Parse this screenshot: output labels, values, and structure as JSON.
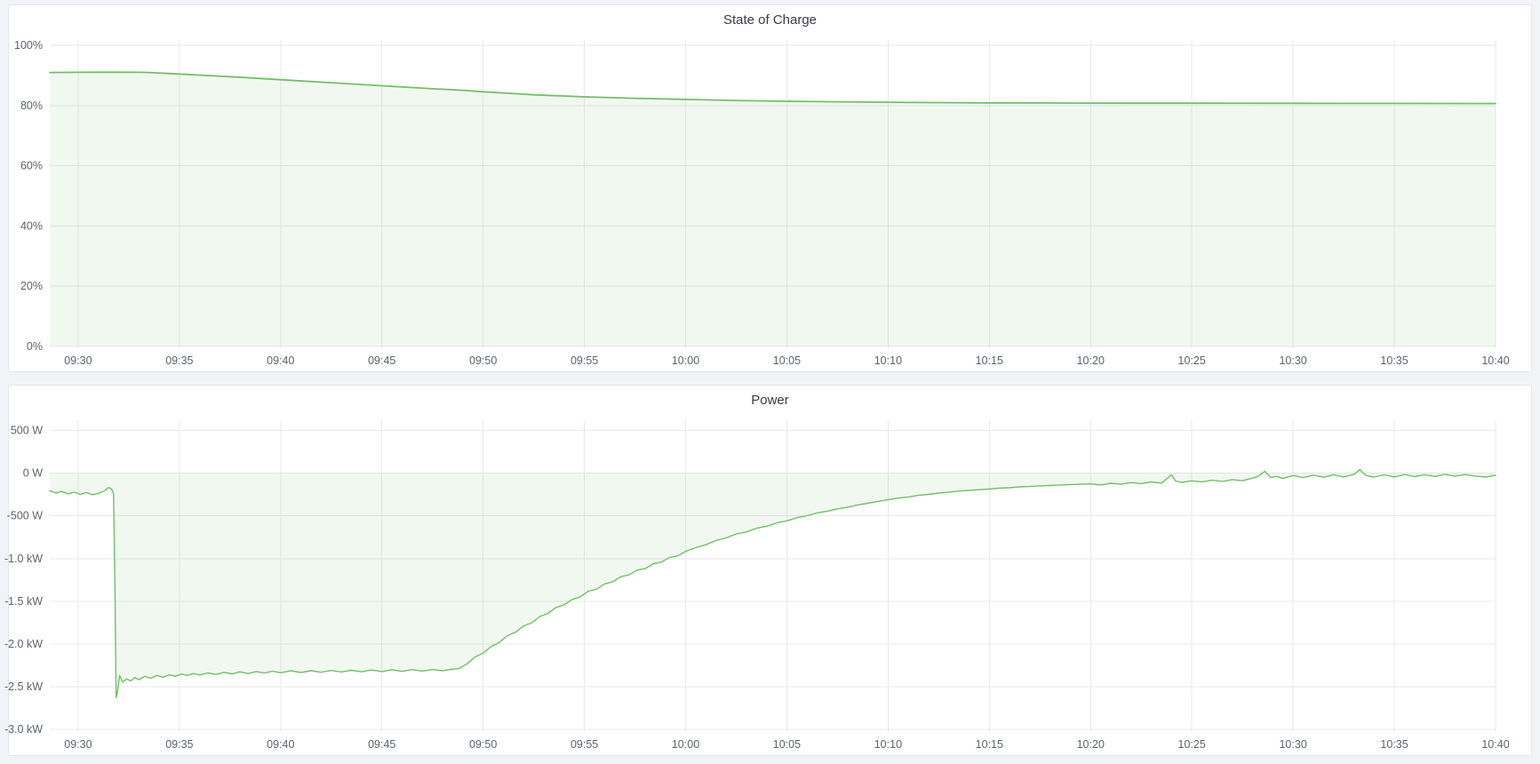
{
  "page": {
    "background": "#f1f3f7",
    "accent_green": "#73bf69"
  },
  "panels": [
    {
      "title": "State of Charge"
    },
    {
      "title": "Power"
    }
  ],
  "chart_data": [
    {
      "type": "area",
      "title": "State of Charge",
      "unit": "percent",
      "legend_position": "none",
      "grid": true,
      "line_color": "#73bf69",
      "fill_color": "rgba(115,191,105,0.10)",
      "line_width": 1.8,
      "x_min": -1.4,
      "x_max": 70,
      "y_min": -0.6,
      "y_max": 101.8,
      "x_unit": "minutes-since-09:30",
      "x_ticks": [
        [
          0,
          "09:30"
        ],
        [
          5,
          "09:35"
        ],
        [
          10,
          "09:40"
        ],
        [
          15,
          "09:45"
        ],
        [
          20,
          "09:50"
        ],
        [
          25,
          "09:55"
        ],
        [
          30,
          "10:00"
        ],
        [
          35,
          "10:05"
        ],
        [
          40,
          "10:10"
        ],
        [
          45,
          "10:15"
        ],
        [
          50,
          "10:20"
        ],
        [
          55,
          "10:25"
        ],
        [
          60,
          "10:30"
        ],
        [
          65,
          "10:35"
        ],
        [
          70,
          "10:40"
        ]
      ],
      "y_ticks": [
        [
          100,
          "100%"
        ],
        [
          80,
          "80%"
        ],
        [
          60,
          "60%"
        ],
        [
          40,
          "40%"
        ],
        [
          20,
          "20%"
        ],
        [
          0,
          "0%"
        ]
      ],
      "points": [
        [
          -1.4,
          91.0
        ],
        [
          0,
          91.05
        ],
        [
          1,
          91.1
        ],
        [
          2,
          91.1
        ],
        [
          3,
          91.05
        ],
        [
          3.5,
          91.0
        ],
        [
          5,
          90.5
        ],
        [
          7.5,
          89.6
        ],
        [
          10,
          88.6
        ],
        [
          12.5,
          87.6
        ],
        [
          15,
          86.6
        ],
        [
          17.5,
          85.6
        ],
        [
          19,
          85.1
        ],
        [
          20,
          84.6
        ],
        [
          21,
          84.2
        ],
        [
          22.5,
          83.6
        ],
        [
          25,
          82.9
        ],
        [
          27.5,
          82.45
        ],
        [
          30,
          82.05
        ],
        [
          32.5,
          81.7
        ],
        [
          35,
          81.45
        ],
        [
          37.5,
          81.25
        ],
        [
          40,
          81.1
        ],
        [
          42.5,
          81.0
        ],
        [
          45,
          80.92
        ],
        [
          47.5,
          80.87
        ],
        [
          50,
          80.83
        ],
        [
          52.5,
          80.8
        ],
        [
          55,
          80.78
        ],
        [
          60,
          80.75
        ],
        [
          65,
          80.72
        ],
        [
          70,
          80.7
        ]
      ]
    },
    {
      "type": "area",
      "title": "Power",
      "unit": "watt",
      "legend_position": "none",
      "grid": true,
      "line_color": "#73bf69",
      "fill_color": "rgba(115,191,105,0.10)",
      "line_width": 1.4,
      "x_min": -1.4,
      "x_max": 70,
      "y_min": -3030,
      "y_max": 620,
      "x_unit": "minutes-since-09:30",
      "x_ticks": [
        [
          0,
          "09:30"
        ],
        [
          5,
          "09:35"
        ],
        [
          10,
          "09:40"
        ],
        [
          15,
          "09:45"
        ],
        [
          20,
          "09:50"
        ],
        [
          25,
          "09:55"
        ],
        [
          30,
          "10:00"
        ],
        [
          35,
          "10:05"
        ],
        [
          40,
          "10:10"
        ],
        [
          45,
          "10:15"
        ],
        [
          50,
          "10:20"
        ],
        [
          55,
          "10:25"
        ],
        [
          60,
          "10:30"
        ],
        [
          65,
          "10:35"
        ],
        [
          70,
          "10:40"
        ]
      ],
      "y_ticks": [
        [
          500,
          "500 W"
        ],
        [
          0,
          "0 W"
        ],
        [
          -500,
          "-500 W"
        ],
        [
          -1000,
          "-1.0 kW"
        ],
        [
          -1500,
          "-1.5 kW"
        ],
        [
          -2000,
          "-2.0 kW"
        ],
        [
          -2500,
          "-2.5 kW"
        ],
        [
          -3000,
          "-3.0 kW"
        ]
      ],
      "points": [
        [
          -1.4,
          -205
        ],
        [
          -1.1,
          -232
        ],
        [
          -0.8,
          -214
        ],
        [
          -0.5,
          -242
        ],
        [
          -0.2,
          -222
        ],
        [
          0.1,
          -248
        ],
        [
          0.4,
          -228
        ],
        [
          0.7,
          -252
        ],
        [
          1.0,
          -236
        ],
        [
          1.3,
          -208
        ],
        [
          1.5,
          -168
        ],
        [
          1.65,
          -186
        ],
        [
          1.75,
          -240
        ],
        [
          1.82,
          -1400
        ],
        [
          1.88,
          -2630
        ],
        [
          1.95,
          -2555
        ],
        [
          2.05,
          -2370
        ],
        [
          2.2,
          -2445
        ],
        [
          2.4,
          -2408
        ],
        [
          2.6,
          -2432
        ],
        [
          2.8,
          -2392
        ],
        [
          3.0,
          -2418
        ],
        [
          3.3,
          -2378
        ],
        [
          3.6,
          -2400
        ],
        [
          3.9,
          -2368
        ],
        [
          4.2,
          -2388
        ],
        [
          4.5,
          -2360
        ],
        [
          4.8,
          -2378
        ],
        [
          5.1,
          -2352
        ],
        [
          5.4,
          -2368
        ],
        [
          5.7,
          -2346
        ],
        [
          6.0,
          -2362
        ],
        [
          6.4,
          -2338
        ],
        [
          6.8,
          -2356
        ],
        [
          7.2,
          -2332
        ],
        [
          7.6,
          -2350
        ],
        [
          8.0,
          -2326
        ],
        [
          8.4,
          -2346
        ],
        [
          8.8,
          -2322
        ],
        [
          9.2,
          -2340
        ],
        [
          9.6,
          -2318
        ],
        [
          10.0,
          -2336
        ],
        [
          10.5,
          -2314
        ],
        [
          11.0,
          -2333
        ],
        [
          11.5,
          -2312
        ],
        [
          12.0,
          -2330
        ],
        [
          12.5,
          -2309
        ],
        [
          13.0,
          -2327
        ],
        [
          13.5,
          -2307
        ],
        [
          14.0,
          -2325
        ],
        [
          14.5,
          -2304
        ],
        [
          15.0,
          -2322
        ],
        [
          15.5,
          -2302
        ],
        [
          16.0,
          -2320
        ],
        [
          16.5,
          -2300
        ],
        [
          17.0,
          -2317
        ],
        [
          17.5,
          -2299
        ],
        [
          18.0,
          -2314
        ],
        [
          18.4,
          -2297
        ],
        [
          18.8,
          -2288
        ],
        [
          19.2,
          -2232
        ],
        [
          19.6,
          -2152
        ],
        [
          20.0,
          -2108
        ],
        [
          20.4,
          -2028
        ],
        [
          20.8,
          -1982
        ],
        [
          21.2,
          -1902
        ],
        [
          21.6,
          -1862
        ],
        [
          22.0,
          -1788
        ],
        [
          22.4,
          -1752
        ],
        [
          22.8,
          -1678
        ],
        [
          23.2,
          -1642
        ],
        [
          23.6,
          -1572
        ],
        [
          24.0,
          -1542
        ],
        [
          24.4,
          -1478
        ],
        [
          24.8,
          -1448
        ],
        [
          25.2,
          -1382
        ],
        [
          25.6,
          -1358
        ],
        [
          26.0,
          -1296
        ],
        [
          26.4,
          -1272
        ],
        [
          26.8,
          -1212
        ],
        [
          27.2,
          -1192
        ],
        [
          27.6,
          -1135
        ],
        [
          28.0,
          -1118
        ],
        [
          28.4,
          -1060
        ],
        [
          28.8,
          -1042
        ],
        [
          29.2,
          -988
        ],
        [
          29.6,
          -970
        ],
        [
          30.0,
          -916
        ],
        [
          30.5,
          -872
        ],
        [
          31.0,
          -838
        ],
        [
          31.5,
          -788
        ],
        [
          32.0,
          -758
        ],
        [
          32.5,
          -712
        ],
        [
          33.0,
          -688
        ],
        [
          33.5,
          -645
        ],
        [
          34.0,
          -622
        ],
        [
          34.5,
          -582
        ],
        [
          35.0,
          -558
        ],
        [
          35.5,
          -522
        ],
        [
          36.0,
          -498
        ],
        [
          36.5,
          -465
        ],
        [
          37.0,
          -445
        ],
        [
          37.5,
          -418
        ],
        [
          38.0,
          -398
        ],
        [
          38.5,
          -372
        ],
        [
          39.0,
          -352
        ],
        [
          39.5,
          -330
        ],
        [
          40.0,
          -312
        ],
        [
          40.5,
          -292
        ],
        [
          41.0,
          -278
        ],
        [
          41.5,
          -260
        ],
        [
          42.0,
          -248
        ],
        [
          42.5,
          -233
        ],
        [
          43.0,
          -223
        ],
        [
          43.5,
          -210
        ],
        [
          44.0,
          -202
        ],
        [
          44.5,
          -193
        ],
        [
          45.0,
          -186
        ],
        [
          45.5,
          -176
        ],
        [
          46.0,
          -170
        ],
        [
          46.5,
          -160
        ],
        [
          47.0,
          -156
        ],
        [
          47.5,
          -148
        ],
        [
          48.0,
          -144
        ],
        [
          48.5,
          -138
        ],
        [
          49.0,
          -135
        ],
        [
          49.5,
          -130
        ],
        [
          50.0,
          -126
        ],
        [
          50.5,
          -138
        ],
        [
          51.0,
          -118
        ],
        [
          51.5,
          -130
        ],
        [
          52.0,
          -110
        ],
        [
          52.5,
          -122
        ],
        [
          53.0,
          -103
        ],
        [
          53.5,
          -116
        ],
        [
          53.8,
          -60
        ],
        [
          54.0,
          -18
        ],
        [
          54.2,
          -92
        ],
        [
          54.5,
          -108
        ],
        [
          55.0,
          -90
        ],
        [
          55.5,
          -102
        ],
        [
          56.0,
          -83
        ],
        [
          56.5,
          -96
        ],
        [
          57.0,
          -76
        ],
        [
          57.5,
          -88
        ],
        [
          58.0,
          -58
        ],
        [
          58.3,
          -34
        ],
        [
          58.6,
          22
        ],
        [
          58.9,
          -52
        ],
        [
          59.2,
          -38
        ],
        [
          59.5,
          -62
        ],
        [
          60.0,
          -28
        ],
        [
          60.5,
          -52
        ],
        [
          61.0,
          -24
        ],
        [
          61.5,
          -48
        ],
        [
          62.0,
          -18
        ],
        [
          62.5,
          -44
        ],
        [
          63.0,
          -14
        ],
        [
          63.3,
          42
        ],
        [
          63.6,
          -28
        ],
        [
          64.0,
          -46
        ],
        [
          64.5,
          -20
        ],
        [
          65.0,
          -44
        ],
        [
          65.5,
          -16
        ],
        [
          66.0,
          -40
        ],
        [
          66.5,
          -18
        ],
        [
          67.0,
          -38
        ],
        [
          67.5,
          -14
        ],
        [
          68.0,
          -36
        ],
        [
          68.5,
          -16
        ],
        [
          69.0,
          -34
        ],
        [
          69.5,
          -44
        ],
        [
          70.0,
          -26
        ]
      ]
    }
  ]
}
